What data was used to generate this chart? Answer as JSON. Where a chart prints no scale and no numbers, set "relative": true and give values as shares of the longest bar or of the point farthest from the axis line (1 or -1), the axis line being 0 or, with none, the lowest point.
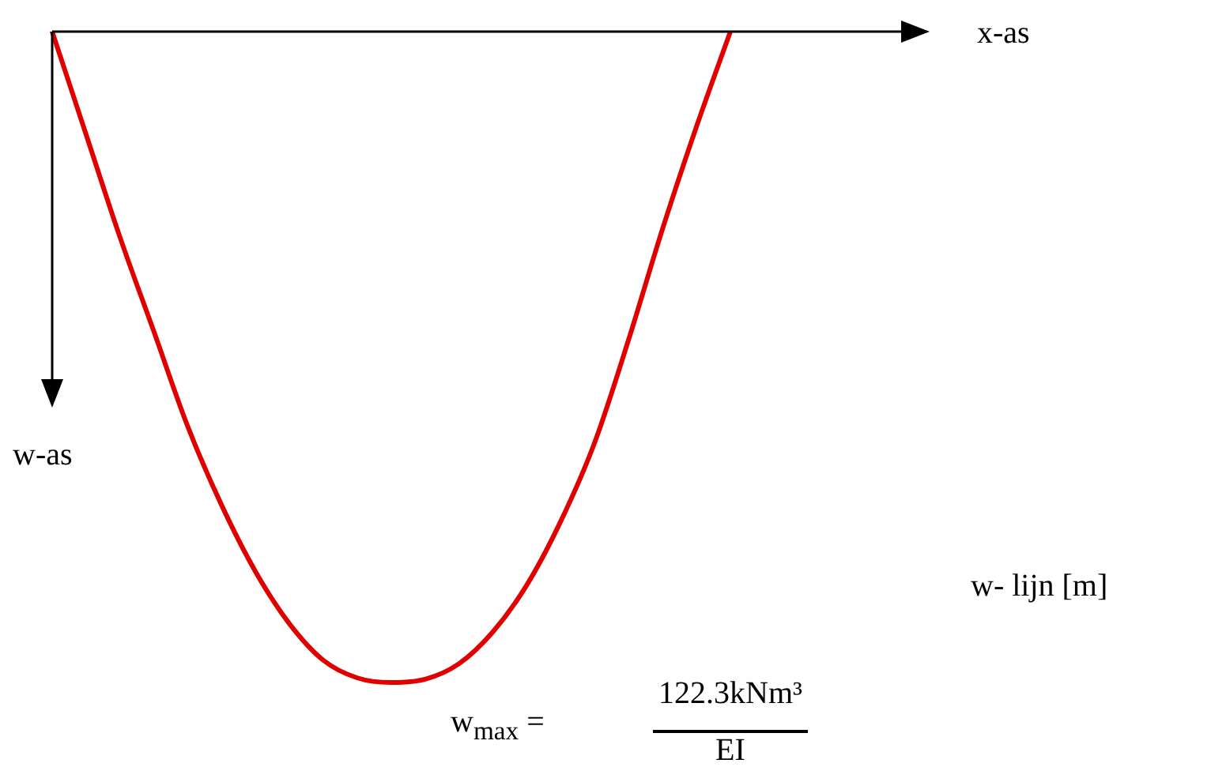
{
  "chart_data": {
    "type": "line",
    "ylabel": "w-as",
    "relative": true,
    "marker": "none",
    "line_style": "solid",
    "categories": [
      null,
      null,
      null,
      null,
      null,
      null,
      null,
      null,
      null,
      null,
      null,
      null,
      null,
      null,
      null,
      null,
      null,
      null,
      null,
      null,
      null
    ],
    "series": [
      {
        "color": "#e00000",
        "values": [
          0,
          -0.158,
          -0.316,
          -0.461,
          -0.607,
          -0.728,
          -0.83,
          -0.91,
          -0.966,
          -0.993,
          -1,
          -0.995,
          -0.971,
          -0.922,
          -0.85,
          -0.752,
          -0.631,
          -0.473,
          -0.303,
          -0.146,
          0
        ]
      }
    ],
    "annotations": [
      "x-as",
      "w- lijn  [m]",
      "w$_{max}$ =",
      "122.3kNm³",
      "EI"
    ]
  }
}
